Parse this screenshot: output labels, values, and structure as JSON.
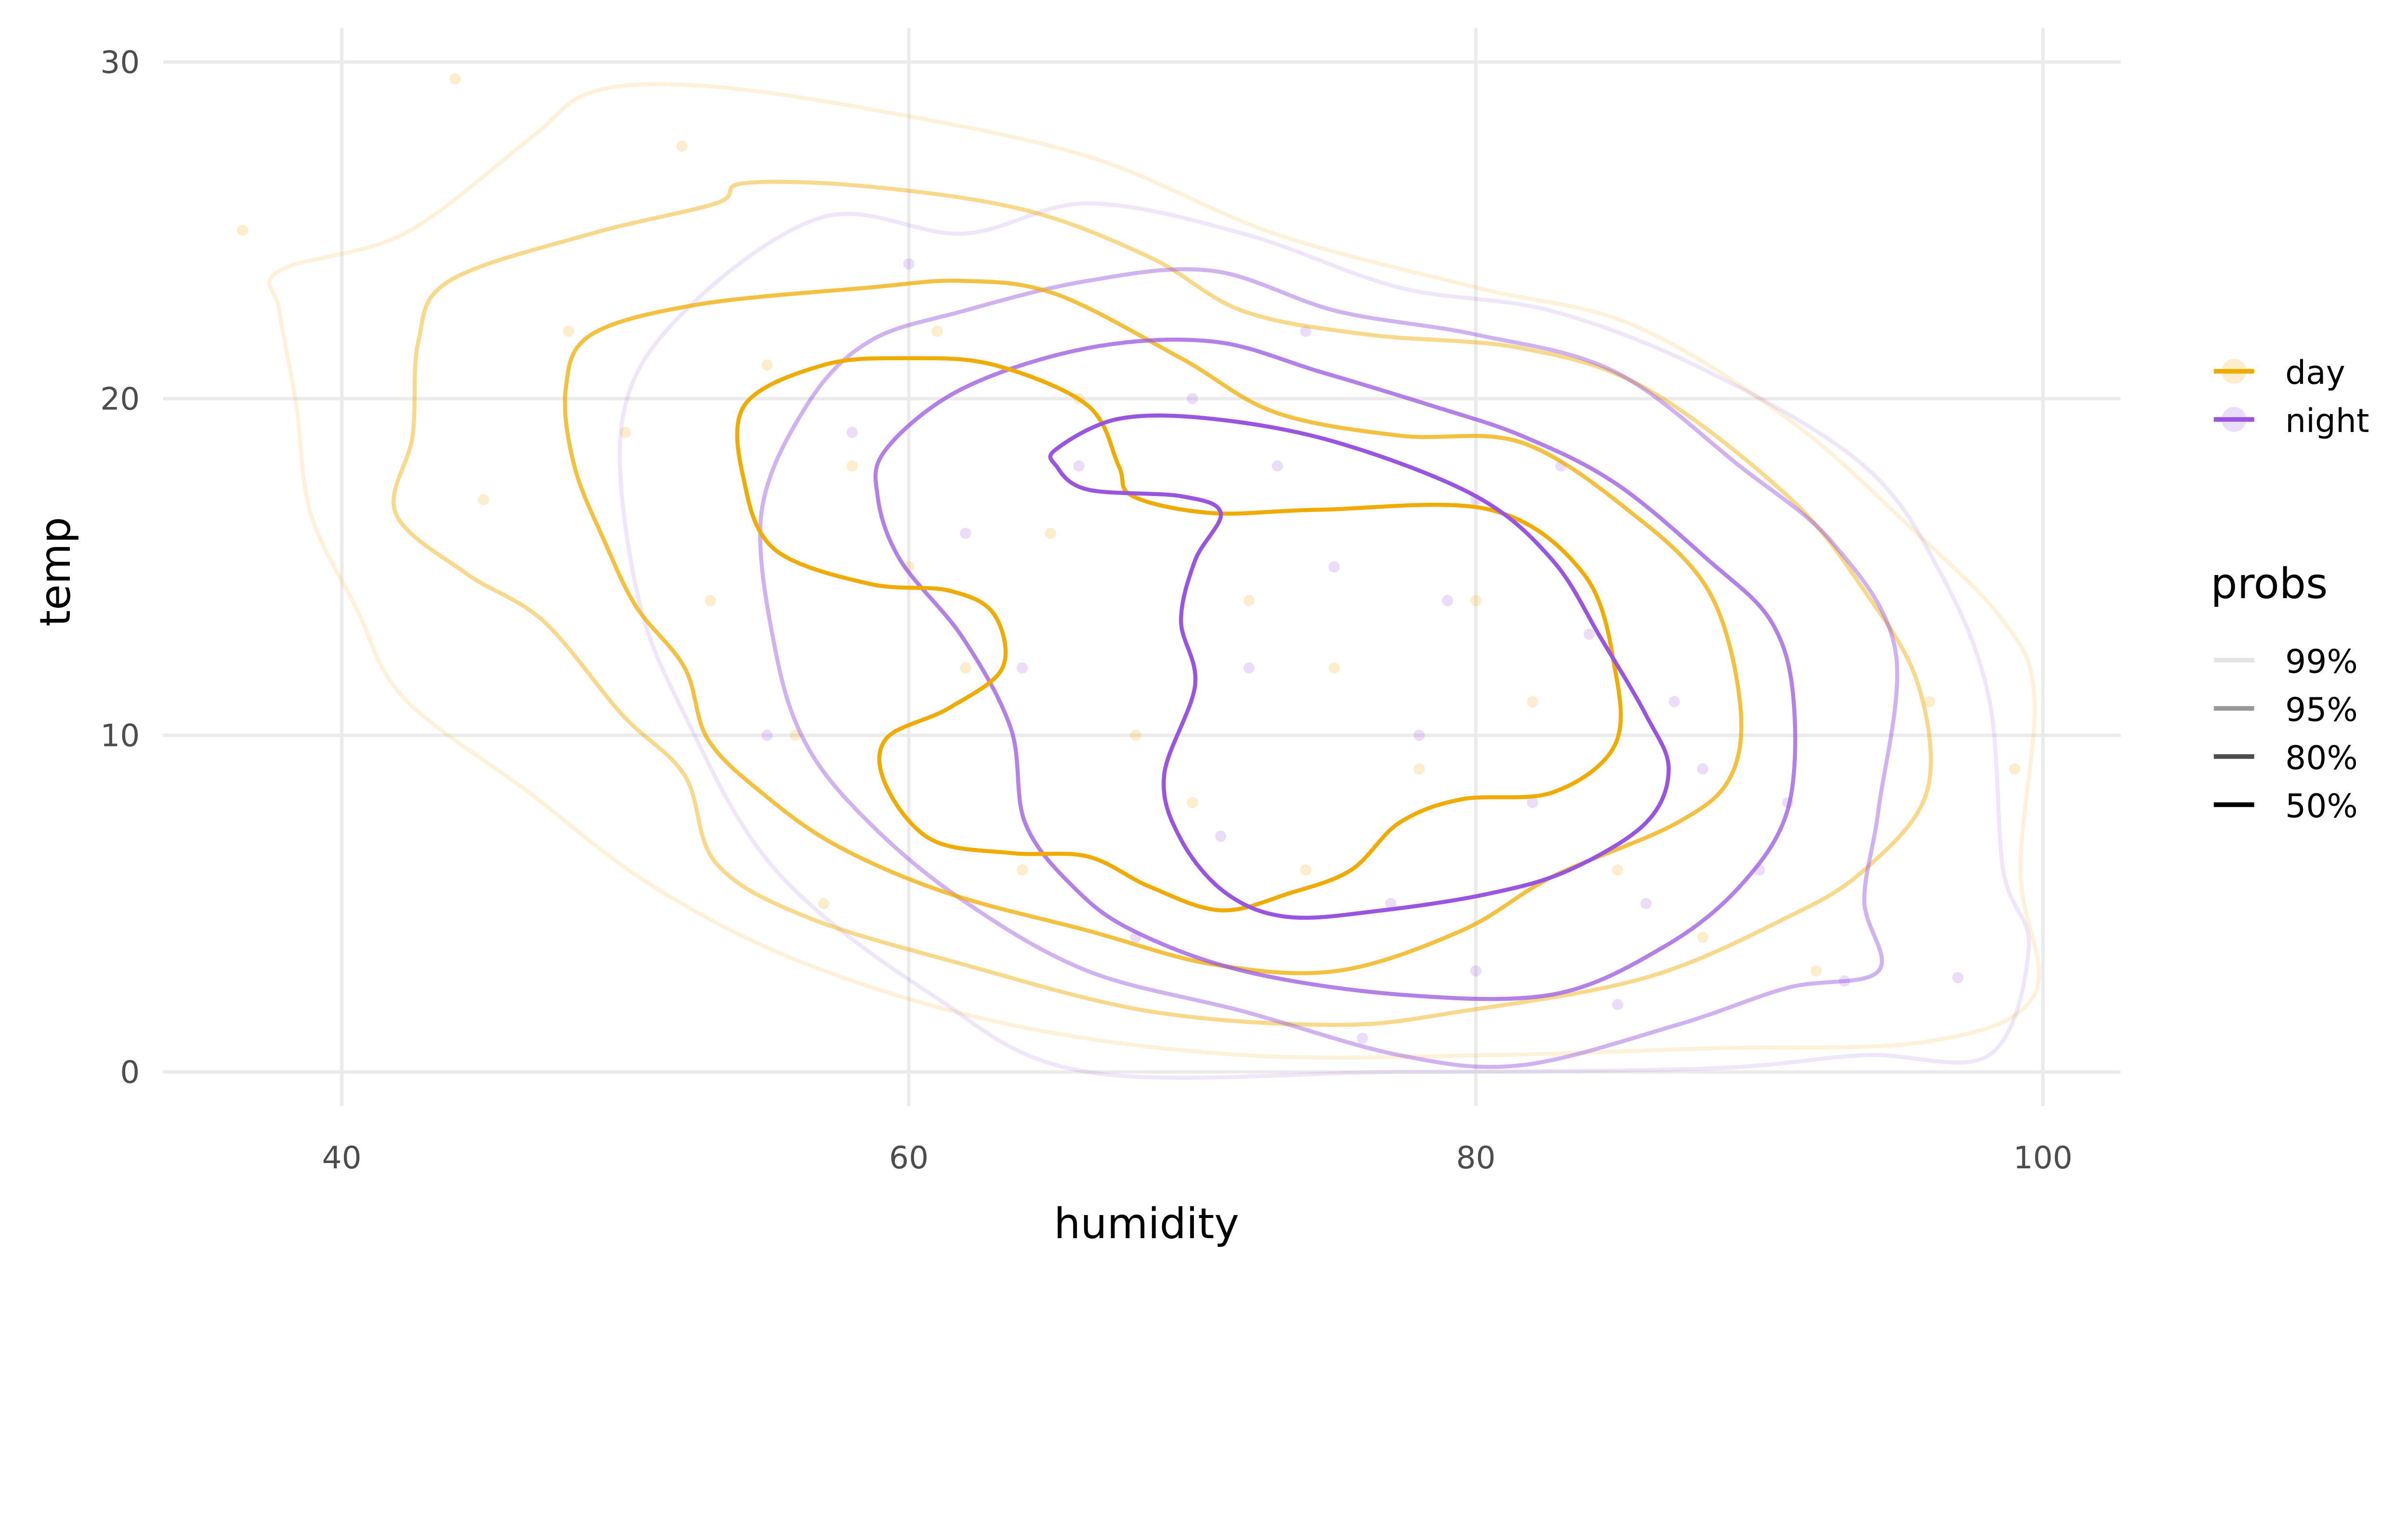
{
  "chart_data": {
    "type": "contour-scatter",
    "title": "",
    "xlabel": "humidity",
    "ylabel": "temp",
    "xlim": [
      34,
      103
    ],
    "ylim": [
      -1.5,
      31
    ],
    "xticks": [
      40,
      60,
      80,
      100
    ],
    "yticks": [
      0,
      10,
      20,
      30
    ],
    "grid": true,
    "legend_placement": "right",
    "colors": {
      "day": "#f0ab00",
      "night": "#9a55e0"
    },
    "level_opacity": {
      "50%": 1,
      "80%": 0.75,
      "95%": 0.45,
      "99%": 0.15
    },
    "legend": {
      "groups": [
        "day",
        "night"
      ],
      "probs_title": "probs",
      "probs": [
        {
          "label": "99%",
          "color": "#e5e5e5"
        },
        {
          "label": "95%",
          "color": "#999999"
        },
        {
          "label": "80%",
          "color": "#4d4d4d"
        },
        {
          "label": "50%",
          "color": "#000000"
        }
      ]
    },
    "series": [
      {
        "name": "day",
        "points": [
          [
            52,
            27.5
          ],
          [
            44,
            29.5
          ],
          [
            36.5,
            25
          ],
          [
            55,
            21
          ],
          [
            58,
            18
          ],
          [
            60,
            15
          ],
          [
            62,
            12
          ],
          [
            65,
            16
          ],
          [
            68,
            10
          ],
          [
            70,
            8
          ],
          [
            72,
            14
          ],
          [
            50,
            19
          ],
          [
            48,
            22
          ],
          [
            56,
            10
          ],
          [
            64,
            6
          ],
          [
            75,
            12
          ],
          [
            78,
            9
          ],
          [
            80,
            14
          ],
          [
            85,
            6
          ],
          [
            88,
            4
          ],
          [
            92,
            3
          ],
          [
            96,
            11
          ],
          [
            99,
            9
          ],
          [
            45,
            17
          ],
          [
            53,
            14
          ],
          [
            66,
            20
          ],
          [
            74,
            6
          ],
          [
            82,
            11
          ],
          [
            61,
            22
          ],
          [
            57,
            5
          ]
        ],
        "contours": {
          "99%": [
            [
              37.8,
              23.8
            ],
            [
              42.2,
              24.9
            ],
            [
              46.6,
              27.7
            ],
            [
              48.8,
              29.1
            ],
            [
              52.6,
              29.3
            ],
            [
              58.6,
              28.6
            ],
            [
              66.3,
              27.2
            ],
            [
              72.9,
              24.9
            ],
            [
              80.0,
              23.3
            ],
            [
              85.5,
              22.2
            ],
            [
              91.0,
              19.4
            ],
            [
              95.3,
              16.2
            ],
            [
              98.6,
              13.4
            ],
            [
              99.7,
              11.1
            ],
            [
              99.2,
              6.0
            ],
            [
              99.7,
              2.3
            ],
            [
              95.9,
              0.9
            ],
            [
              88.2,
              0.7
            ],
            [
              80.5,
              0.5
            ],
            [
              71.8,
              0.5
            ],
            [
              63.6,
              1.4
            ],
            [
              56.4,
              3.2
            ],
            [
              51.0,
              5.5
            ],
            [
              46.6,
              8.3
            ],
            [
              42.2,
              11.1
            ],
            [
              40.5,
              13.8
            ],
            [
              38.9,
              16.6
            ],
            [
              38.4,
              19.8
            ],
            [
              37.8,
              22.6
            ]
          ],
          "95%": [
            [
              43.8,
              23.5
            ],
            [
              48.8,
              24.9
            ],
            [
              53.2,
              25.8
            ],
            [
              54.2,
              26.4
            ],
            [
              58.6,
              26.3
            ],
            [
              64.1,
              25.6
            ],
            [
              68.5,
              24.2
            ],
            [
              71.8,
              22.6
            ],
            [
              76.2,
              21.9
            ],
            [
              81.6,
              21.5
            ],
            [
              86.0,
              20.3
            ],
            [
              91.0,
              17.1
            ],
            [
              93.7,
              14.3
            ],
            [
              95.6,
              11.5
            ],
            [
              95.9,
              8.3
            ],
            [
              93.7,
              6.0
            ],
            [
              91.0,
              4.6
            ],
            [
              86.0,
              2.8
            ],
            [
              79.5,
              1.8
            ],
            [
              75.1,
              1.4
            ],
            [
              68.5,
              1.8
            ],
            [
              61.9,
              3.2
            ],
            [
              56.4,
              4.6
            ],
            [
              53.2,
              6.2
            ],
            [
              52.1,
              8.8
            ],
            [
              49.9,
              10.6
            ],
            [
              47.1,
              13.4
            ],
            [
              44.4,
              14.8
            ],
            [
              41.9,
              16.6
            ],
            [
              42.5,
              18.9
            ],
            [
              42.7,
              21.7
            ]
          ],
          "80%": [
            [
              48.8,
              21.9
            ],
            [
              52.6,
              22.8
            ],
            [
              58.6,
              23.3
            ],
            [
              61.9,
              23.5
            ],
            [
              65.2,
              23.1
            ],
            [
              69.6,
              21.2
            ],
            [
              72.9,
              19.6
            ],
            [
              77.3,
              18.9
            ],
            [
              81.6,
              18.7
            ],
            [
              85.5,
              16.6
            ],
            [
              88.2,
              14.3
            ],
            [
              89.3,
              11.1
            ],
            [
              89.0,
              8.8
            ],
            [
              87.1,
              7.4
            ],
            [
              82.7,
              5.8
            ],
            [
              79.5,
              4.2
            ],
            [
              75.1,
              3.0
            ],
            [
              70.7,
              3.2
            ],
            [
              66.3,
              4.2
            ],
            [
              61.4,
              5.3
            ],
            [
              57.5,
              6.7
            ],
            [
              54.8,
              8.3
            ],
            [
              52.9,
              9.9
            ],
            [
              52.1,
              12.0
            ],
            [
              50.4,
              13.8
            ],
            [
              49.3,
              15.7
            ],
            [
              48.2,
              18.0
            ],
            [
              47.9,
              20.3
            ]
          ],
          "50%": [
            [
              54.2,
              19.8
            ],
            [
              57.0,
              21.0
            ],
            [
              60.0,
              21.2
            ],
            [
              63.0,
              21.0
            ],
            [
              66.3,
              19.8
            ],
            [
              67.4,
              18.0
            ],
            [
              67.9,
              17.1
            ],
            [
              70.7,
              16.6
            ],
            [
              74.5,
              16.7
            ],
            [
              80.5,
              16.7
            ],
            [
              83.8,
              14.8
            ],
            [
              84.9,
              12.0
            ],
            [
              84.9,
              9.7
            ],
            [
              82.7,
              8.3
            ],
            [
              79.5,
              8.1
            ],
            [
              77.3,
              7.4
            ],
            [
              75.6,
              6.0
            ],
            [
              73.4,
              5.3
            ],
            [
              71.0,
              4.8
            ],
            [
              68.5,
              5.5
            ],
            [
              66.3,
              6.4
            ],
            [
              63.6,
              6.5
            ],
            [
              60.8,
              6.9
            ],
            [
              59.2,
              8.5
            ],
            [
              59.2,
              9.9
            ],
            [
              61.4,
              10.8
            ],
            [
              63.3,
              12.0
            ],
            [
              63.0,
              13.6
            ],
            [
              61.4,
              14.3
            ],
            [
              58.6,
              14.5
            ],
            [
              55.3,
              15.5
            ],
            [
              54.2,
              17.5
            ]
          ]
        }
      },
      {
        "name": "night",
        "points": [
          [
            72,
            12
          ],
          [
            75,
            15
          ],
          [
            78,
            10
          ],
          [
            80,
            17
          ],
          [
            82,
            8
          ],
          [
            84,
            13
          ],
          [
            86,
            5
          ],
          [
            88,
            9
          ],
          [
            90,
            6
          ],
          [
            70,
            20
          ],
          [
            66,
            18
          ],
          [
            62,
            16
          ],
          [
            68,
            4
          ],
          [
            76,
            1
          ],
          [
            80,
            3
          ],
          [
            85,
            2
          ],
          [
            93,
            2.7
          ],
          [
            97,
            2.8
          ],
          [
            60,
            24
          ],
          [
            55,
            10
          ],
          [
            58,
            19
          ],
          [
            74,
            22
          ],
          [
            79,
            14
          ],
          [
            83,
            18
          ],
          [
            87,
            11
          ],
          [
            91,
            8
          ],
          [
            64,
            12
          ],
          [
            71,
            7
          ],
          [
            77,
            5
          ],
          [
            73,
            18
          ]
        ],
        "contours": {
          "99%": [
            [
              49.9,
              19.4
            ],
            [
              52.1,
              22.6
            ],
            [
              57.0,
              25.4
            ],
            [
              61.9,
              24.9
            ],
            [
              66.3,
              25.8
            ],
            [
              71.8,
              24.9
            ],
            [
              77.3,
              23.3
            ],
            [
              82.7,
              22.6
            ],
            [
              88.2,
              20.8
            ],
            [
              93.7,
              18.0
            ],
            [
              96.4,
              14.8
            ],
            [
              98.1,
              11.1
            ],
            [
              98.6,
              6.0
            ],
            [
              99.5,
              3.7
            ],
            [
              98.1,
              0.5
            ],
            [
              93.7,
              0.5
            ],
            [
              88.2,
              0.1
            ],
            [
              77.3,
              0
            ],
            [
              66.3,
              0
            ],
            [
              60.8,
              2.3
            ],
            [
              55.3,
              6.0
            ],
            [
              52.1,
              10.6
            ],
            [
              50.4,
              14.3
            ]
          ],
          "95%": [
            [
              54.8,
              16.6
            ],
            [
              56.4,
              19.8
            ],
            [
              58.6,
              21.7
            ],
            [
              61.9,
              22.6
            ],
            [
              66.3,
              23.5
            ],
            [
              70.7,
              23.8
            ],
            [
              75.1,
              22.6
            ],
            [
              80.0,
              21.9
            ],
            [
              84.9,
              20.8
            ],
            [
              89.3,
              18.0
            ],
            [
              92.6,
              15.7
            ],
            [
              94.8,
              12.5
            ],
            [
              94.2,
              7.8
            ],
            [
              93.7,
              5.1
            ],
            [
              94.2,
              3.0
            ],
            [
              91.0,
              2.5
            ],
            [
              87.1,
              1.4
            ],
            [
              81.6,
              0.2
            ],
            [
              77.3,
              0.5
            ],
            [
              71.8,
              1.8
            ],
            [
              66.3,
              3.0
            ],
            [
              61.9,
              5.1
            ],
            [
              58.6,
              7.4
            ],
            [
              56.4,
              9.7
            ],
            [
              55.3,
              12.5
            ]
          ],
          "80%": [
            [
              59.2,
              18.5
            ],
            [
              61.9,
              20.3
            ],
            [
              66.3,
              21.5
            ],
            [
              70.7,
              21.7
            ],
            [
              74.5,
              20.8
            ],
            [
              78.4,
              19.8
            ],
            [
              81.6,
              18.9
            ],
            [
              84.9,
              17.5
            ],
            [
              88.2,
              15.2
            ],
            [
              90.4,
              13.4
            ],
            [
              91.2,
              11.1
            ],
            [
              91.0,
              7.8
            ],
            [
              89.3,
              5.5
            ],
            [
              86.6,
              3.7
            ],
            [
              82.7,
              2.3
            ],
            [
              77.3,
              2.3
            ],
            [
              71.8,
              3.0
            ],
            [
              67.9,
              4.2
            ],
            [
              65.8,
              5.5
            ],
            [
              64.1,
              7.4
            ],
            [
              63.6,
              10.2
            ],
            [
              61.9,
              12.9
            ],
            [
              59.7,
              15.2
            ],
            [
              58.9,
              17.1
            ]
          ],
          "50%": [
            [
              65.2,
              18.5
            ],
            [
              67.4,
              19.4
            ],
            [
              70.7,
              19.4
            ],
            [
              75.1,
              18.7
            ],
            [
              80.0,
              17.1
            ],
            [
              82.7,
              15.2
            ],
            [
              84.4,
              12.9
            ],
            [
              86.0,
              10.6
            ],
            [
              86.8,
              9.0
            ],
            [
              86.0,
              7.4
            ],
            [
              83.3,
              6.0
            ],
            [
              80.5,
              5.3
            ],
            [
              76.7,
              4.8
            ],
            [
              73.4,
              4.6
            ],
            [
              71.2,
              5.3
            ],
            [
              69.6,
              6.9
            ],
            [
              69.0,
              8.8
            ],
            [
              70.1,
              11.5
            ],
            [
              69.6,
              13.4
            ],
            [
              70.1,
              15.2
            ],
            [
              71.0,
              16.6
            ],
            [
              69.6,
              17.1
            ],
            [
              66.3,
              17.3
            ],
            [
              65.2,
              18.0
            ]
          ]
        }
      }
    ]
  }
}
